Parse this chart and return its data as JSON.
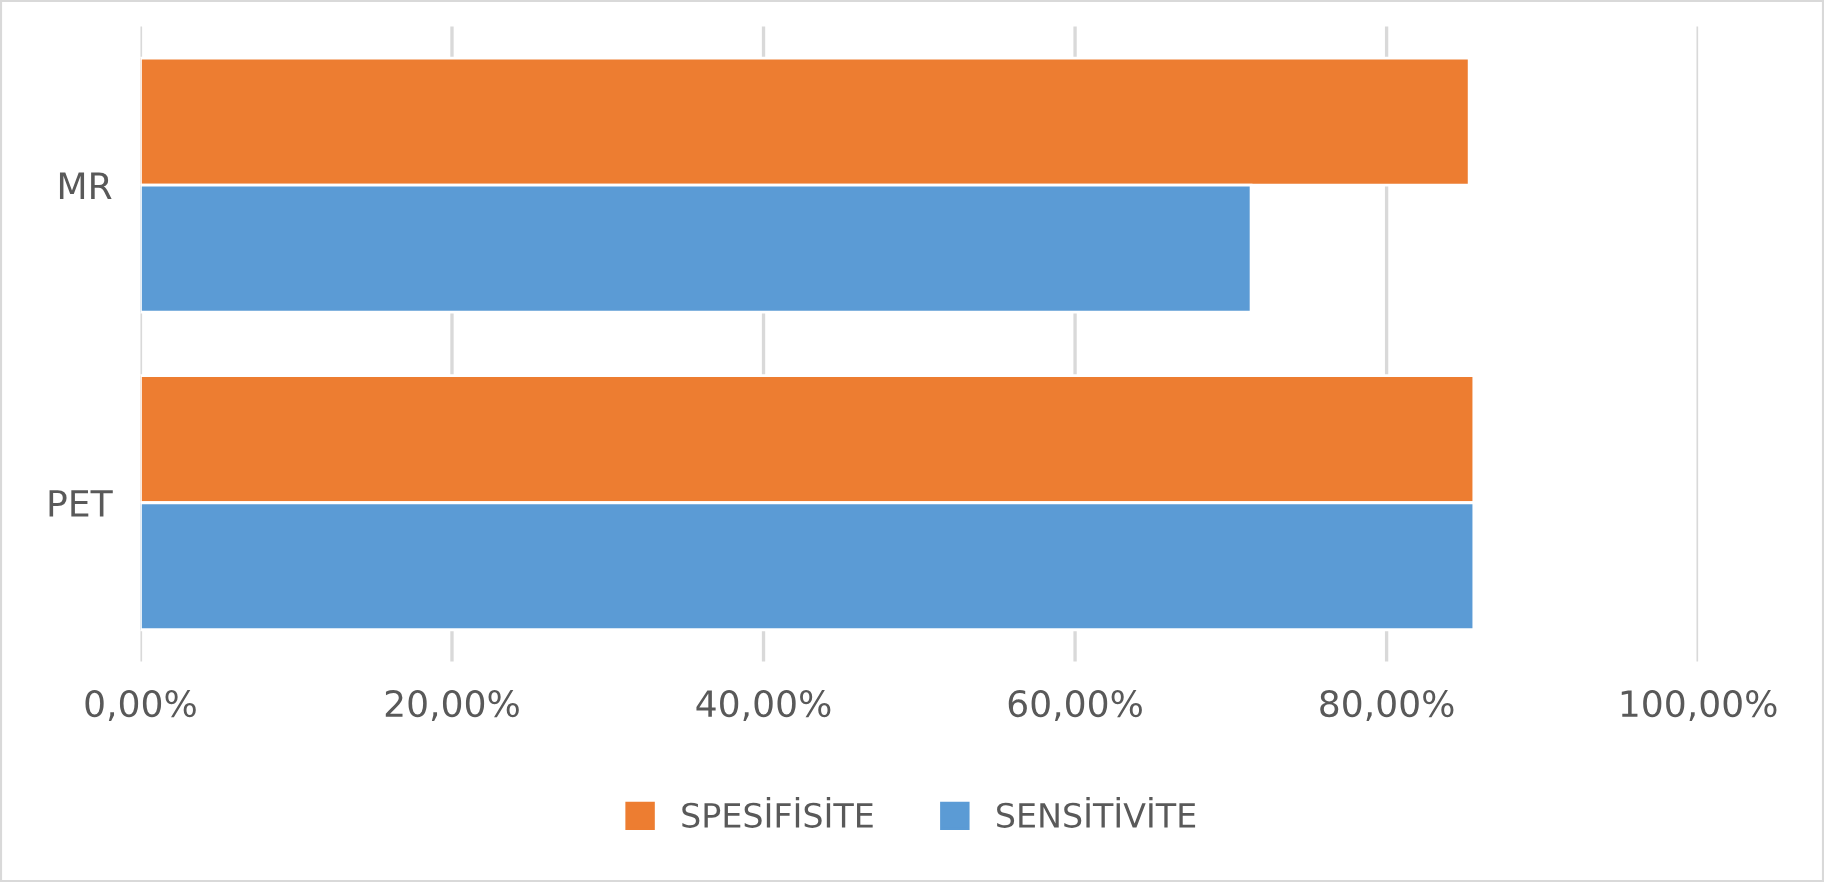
{
  "chart_data": {
    "type": "bar",
    "orientation": "horizontal",
    "categories": [
      "MR",
      "PET"
    ],
    "series": [
      {
        "name": "SPESİFİSİTE",
        "color": "#ed7d31",
        "values": [
          85.3,
          85.6
        ]
      },
      {
        "name": "SENSİTİVİTE",
        "color": "#5b9bd5",
        "values": [
          71.3,
          85.6
        ]
      }
    ],
    "xlim": [
      0,
      100
    ],
    "xticks": [
      {
        "value": 0,
        "label": "0,00%"
      },
      {
        "value": 20,
        "label": "20,00%"
      },
      {
        "value": 40,
        "label": "40,00%"
      },
      {
        "value": 60,
        "label": "60,00%"
      },
      {
        "value": 80,
        "label": "80,00%"
      },
      {
        "value": 100,
        "label": "100,00%"
      }
    ],
    "grid": "x",
    "legend": "bottom"
  }
}
